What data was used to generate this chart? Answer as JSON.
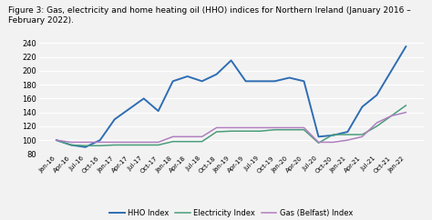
{
  "title": "Figure 3: Gas, electricity and home heating oil (HHO) indices for Northern Ireland (January 2016 – February 2022).",
  "title_fontsize": 6.5,
  "ylim": [
    80,
    245
  ],
  "yticks": [
    80,
    100,
    120,
    140,
    160,
    180,
    200,
    220,
    240
  ],
  "background_color": "#f2f2f2",
  "legend_labels": [
    "Gas (Belfast) Index",
    "Electricity Index",
    "HHO Index"
  ],
  "gas_color": "#b07fbf",
  "elec_color": "#4a9c7c",
  "hho_color": "#2e6db4",
  "x_labels": [
    "Jan-16",
    "Apr-16",
    "Jul-16",
    "Oct-16",
    "Jan-17",
    "Apr-17",
    "Jul-17",
    "Oct-17",
    "Jan-18",
    "Apr-18",
    "Jul-18",
    "Oct-18",
    "Jan-19",
    "Apr-19",
    "Jul-19",
    "Oct-19",
    "Jan-20",
    "Apr-20",
    "Jul-20",
    "Oct-20",
    "Jan-21",
    "Apr-21",
    "Jul-21",
    "Oct-21",
    "Jan-22"
  ],
  "gas_values": [
    100,
    97,
    97,
    97,
    97,
    97,
    97,
    97,
    105,
    105,
    105,
    118,
    118,
    118,
    118,
    118,
    118,
    118,
    97,
    97,
    100,
    105,
    125,
    135,
    140
  ],
  "elec_values": [
    100,
    93,
    92,
    92,
    93,
    93,
    93,
    93,
    98,
    98,
    98,
    112,
    113,
    113,
    113,
    115,
    115,
    115,
    96,
    108,
    108,
    108,
    120,
    135,
    150
  ],
  "hho_values": [
    100,
    93,
    90,
    100,
    130,
    145,
    160,
    142,
    185,
    192,
    185,
    195,
    215,
    185,
    185,
    185,
    190,
    185,
    105,
    107,
    112,
    148,
    165,
    200,
    235
  ]
}
